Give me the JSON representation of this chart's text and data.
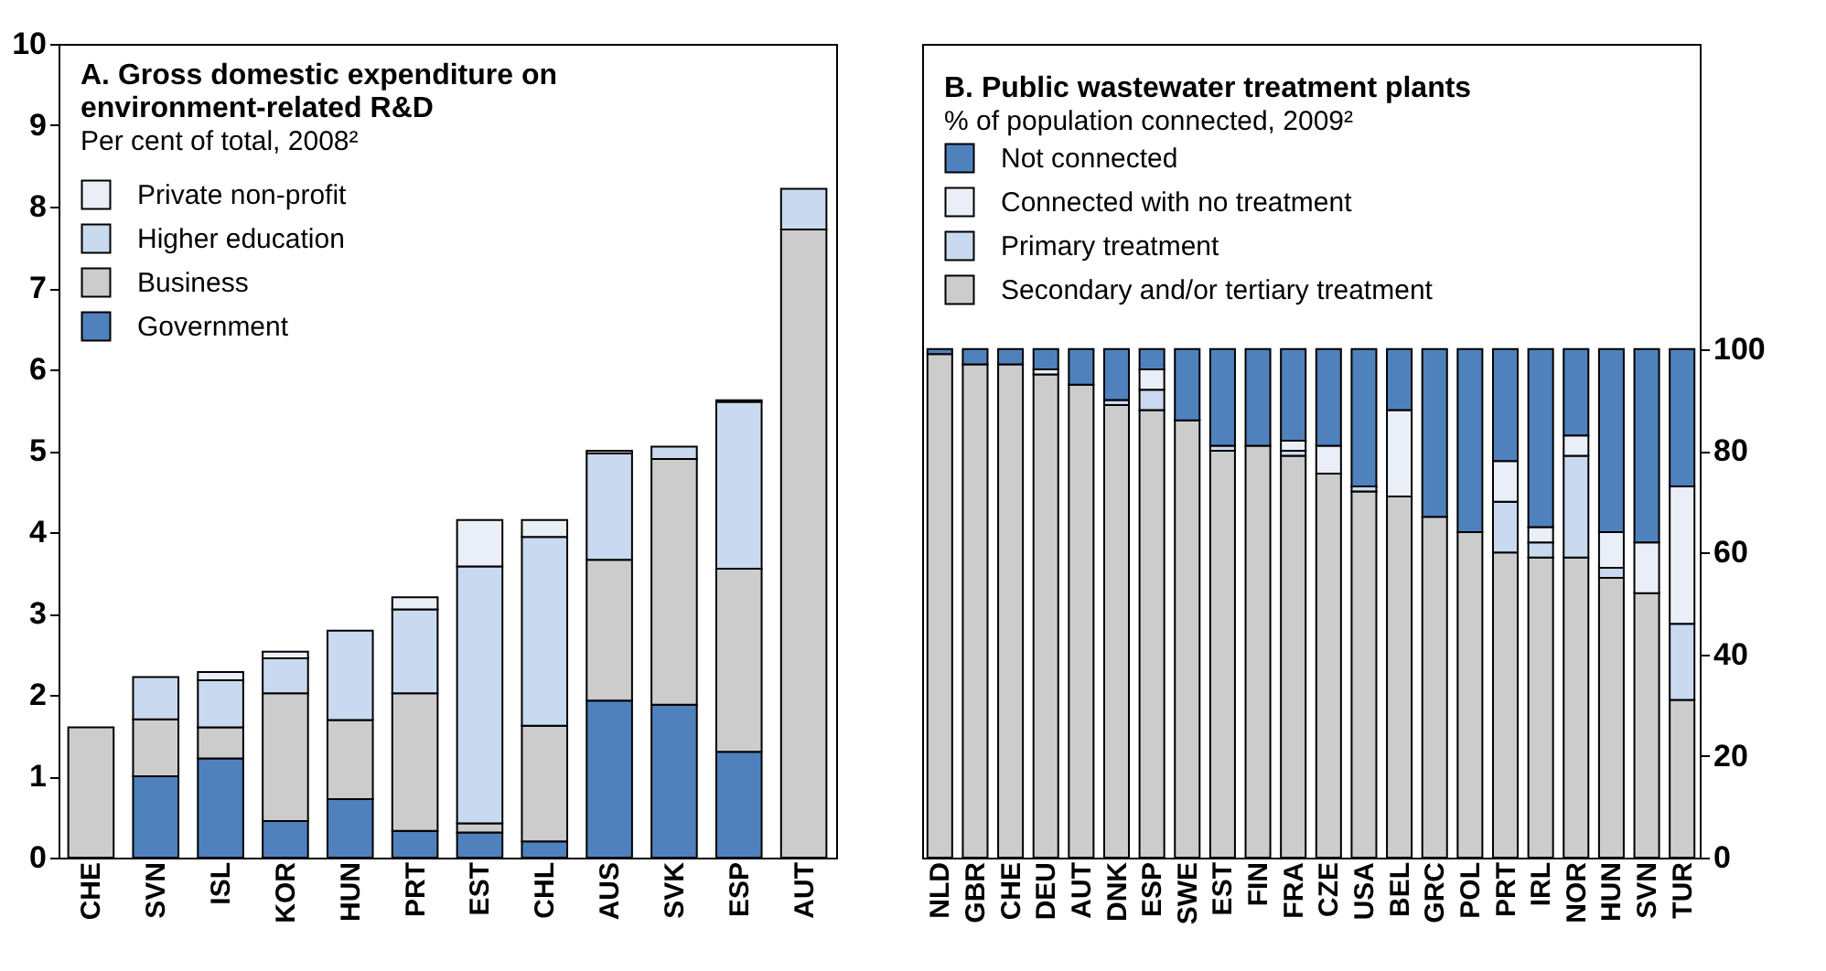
{
  "chart_data": [
    {
      "type": "bar",
      "title": "A. Gross domestic expenditure on environment-related R&D",
      "subtitle": "Per cent of total, 2008²",
      "stacked": true,
      "legend": "top left",
      "grid": false,
      "categories": [
        "CHE",
        "SVN",
        "ISL",
        "KOR",
        "HUN",
        "PRT",
        "EST",
        "CHL",
        "AUS",
        "SVK",
        "ESP",
        "AUT"
      ],
      "ylim": [
        0,
        10
      ],
      "yticks": [
        0,
        1,
        2,
        3,
        4,
        5,
        6,
        7,
        8,
        9,
        10
      ],
      "series": [
        {
          "name": "Government",
          "color": "#4f81bd",
          "values": [
            null,
            1.0,
            1.22,
            0.45,
            0.72,
            0.33,
            0.31,
            0.2,
            1.93,
            1.88,
            1.3,
            null
          ]
        },
        {
          "name": "Business",
          "color": "#cccccc",
          "values": [
            1.6,
            0.7,
            0.38,
            1.57,
            0.97,
            1.69,
            0.11,
            1.42,
            1.73,
            3.02,
            2.25,
            7.72
          ]
        },
        {
          "name": "Higher education",
          "color": "#c9d9ef",
          "values": [
            0,
            0.52,
            0.58,
            0.43,
            1.1,
            1.03,
            3.16,
            2.32,
            1.31,
            0.15,
            2.05,
            0.5
          ]
        },
        {
          "name": "Private non-profit",
          "color": "#eaeef7",
          "values": [
            0,
            0,
            0.1,
            0.08,
            0,
            0.15,
            0.57,
            0.21,
            0.03,
            0,
            0.02,
            0
          ]
        }
      ]
    },
    {
      "type": "bar",
      "title": "B. Public wastewater treatment plants",
      "subtitle": "% of population connected, 2009²",
      "stacked": true,
      "legend": "top left",
      "grid": false,
      "categories": [
        "NLD",
        "GBR",
        "CHE",
        "DEU",
        "AUT",
        "DNK",
        "ESP",
        "SWE",
        "EST",
        "FIN",
        "FRA",
        "CZE",
        "USA",
        "BEL",
        "GRC",
        "POL",
        "PRT",
        "IRL",
        "NOR",
        "HUN",
        "SVN",
        "TUR"
      ],
      "ylim": [
        0,
        160
      ],
      "yticks": [
        0,
        20,
        40,
        60,
        80,
        100
      ],
      "series": [
        {
          "name": "Secondary and/or tertiary treatment",
          "color": "#cccccc",
          "values": [
            99,
            97,
            97,
            95,
            93,
            89,
            88,
            86,
            80,
            81,
            79,
            75.5,
            72,
            71,
            67,
            64,
            60,
            59,
            59,
            55,
            52,
            31
          ]
        },
        {
          "name": "Primary treatment",
          "color": "#c9d9ef",
          "values": [
            0,
            0,
            0,
            0,
            0,
            1,
            4,
            0,
            1,
            0,
            1,
            0,
            1,
            0,
            0,
            0,
            10,
            3,
            20,
            2,
            0,
            15
          ]
        },
        {
          "name": "Connected with no treatment",
          "color": "#eaeef7",
          "values": [
            0,
            0,
            0,
            1,
            0,
            0,
            4,
            0,
            0,
            0,
            2,
            5.5,
            0,
            17,
            0,
            0,
            8,
            3,
            4,
            7,
            10,
            27
          ]
        },
        {
          "name": "Not connected",
          "color": "#4f81bd",
          "values": [
            1,
            3,
            3,
            4,
            7,
            10,
            4,
            14,
            19,
            19,
            18,
            19,
            27,
            12,
            33,
            36,
            22,
            35,
            17,
            36,
            38,
            27
          ]
        }
      ]
    }
  ]
}
